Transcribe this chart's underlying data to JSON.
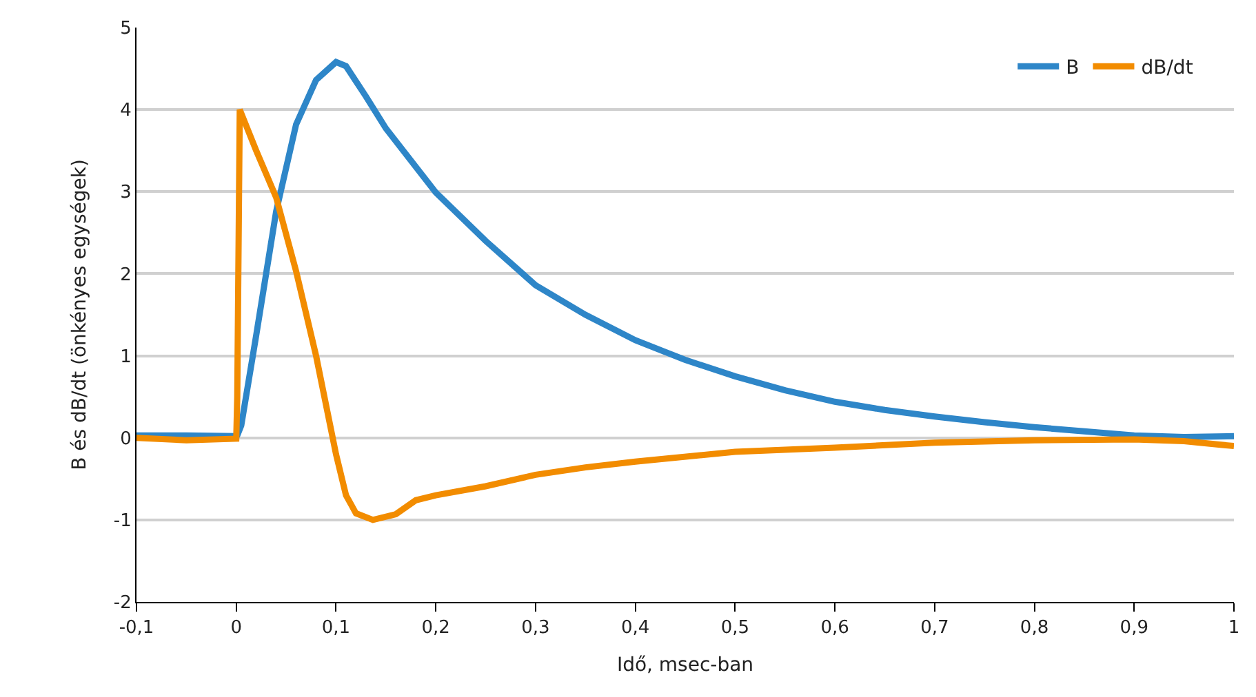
{
  "chart_data": {
    "type": "line",
    "xlabel": "Idő, msec-ban",
    "ylabel": "B és dB/dt (önkényes egységek)",
    "xlim": [
      -0.1,
      1
    ],
    "xticks": [
      {
        "value": -0.1,
        "label": "-0,1"
      },
      0,
      {
        "value": 0.1,
        "label": "0,1"
      },
      {
        "value": 0.2,
        "label": "0,2"
      },
      {
        "value": 0.3,
        "label": "0,3"
      },
      {
        "value": 0.4,
        "label": "0,4"
      },
      {
        "value": 0.5,
        "label": "0,5"
      },
      {
        "value": 0.6,
        "label": "0,6"
      },
      {
        "value": 0.7,
        "label": "0,7"
      },
      {
        "value": 0.8,
        "label": "0,8"
      },
      {
        "value": 0.9,
        "label": "0,9"
      },
      1
    ],
    "ylim": [
      -2,
      5
    ],
    "yticks": [
      -2,
      -1,
      0,
      1,
      2,
      3,
      4,
      5
    ],
    "grid": "y",
    "legend": "top right",
    "marker": "none",
    "line_style": "solid",
    "series": [
      {
        "name": "B",
        "color": "#2e86c8",
        "x": [
          -0.1,
          -0.05,
          0,
          0.001,
          0.005,
          0.02,
          0.04,
          0.06,
          0.08,
          0.1,
          0.11,
          0.13,
          0.15,
          0.2,
          0.25,
          0.3,
          0.35,
          0.4,
          0.45,
          0.5,
          0.55,
          0.6,
          0.65,
          0.7,
          0.75,
          0.8,
          0.85,
          0.9,
          0.95,
          1
        ],
        "values": [
          0.03,
          0.03,
          0.02,
          0.03,
          0.15,
          1.25,
          2.76,
          3.82,
          4.36,
          4.58,
          4.53,
          4.16,
          3.77,
          2.99,
          2.4,
          1.86,
          1.5,
          1.19,
          0.95,
          0.75,
          0.58,
          0.44,
          0.34,
          0.26,
          0.19,
          0.13,
          0.08,
          0.03,
          0.01,
          0.02
        ]
      },
      {
        "name": "dB/dt",
        "color": "#f28c00",
        "x": [
          -0.1,
          -0.05,
          0,
          0.001,
          0.0035,
          0.02,
          0.04,
          0.06,
          0.08,
          0.1,
          0.11,
          0.12,
          0.137,
          0.16,
          0.18,
          0.2,
          0.25,
          0.3,
          0.35,
          0.4,
          0.5,
          0.6,
          0.7,
          0.8,
          0.9,
          0.95,
          1
        ],
        "values": [
          0,
          -0.03,
          -0.01,
          0.5,
          4.0,
          3.5,
          2.93,
          2.03,
          1.0,
          -0.2,
          -0.7,
          -0.92,
          -1.0,
          -0.93,
          -0.76,
          -0.7,
          -0.59,
          -0.45,
          -0.36,
          -0.29,
          -0.17,
          -0.12,
          -0.06,
          -0.03,
          -0.02,
          -0.04,
          -0.1
        ]
      }
    ]
  }
}
